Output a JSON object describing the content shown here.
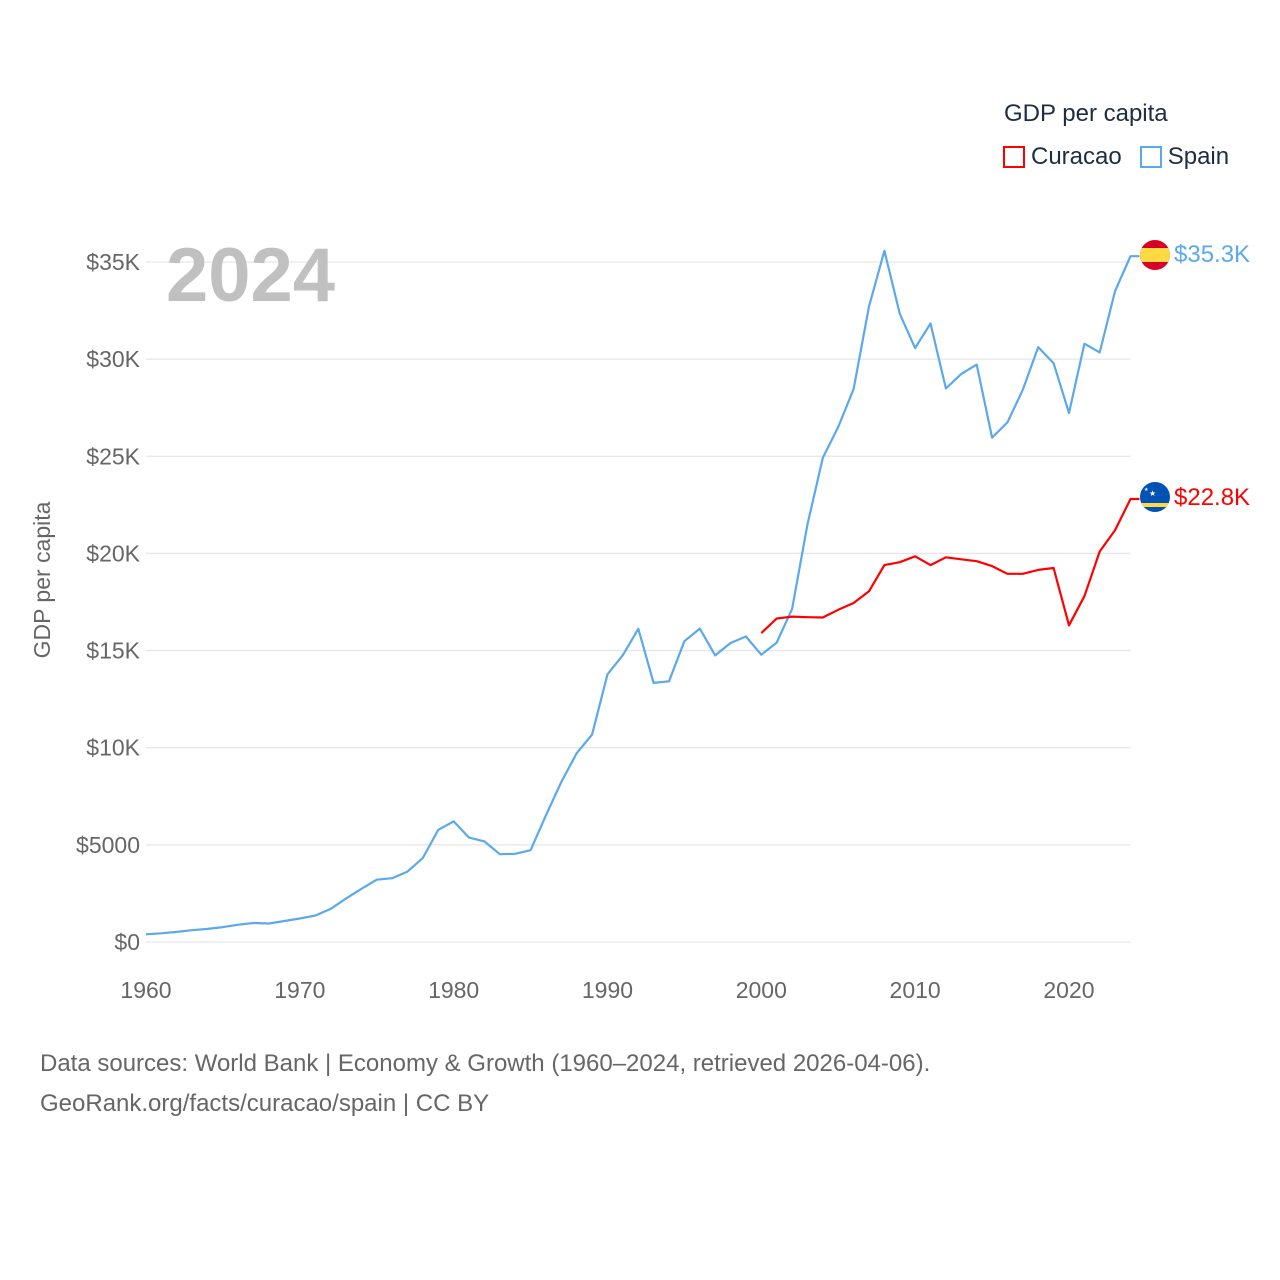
{
  "chart_data": {
    "type": "line",
    "title": "GDP per capita",
    "ylabel": "GDP per capita",
    "xlabel": "",
    "year_label": "2024",
    "xlim": [
      1960,
      2024
    ],
    "ylim": [
      0,
      35000
    ],
    "x_ticks": [
      "1960",
      "1970",
      "1980",
      "1990",
      "2000",
      "2010",
      "2020"
    ],
    "x_tick_values": [
      1960,
      1970,
      1980,
      1990,
      2000,
      2010,
      2020
    ],
    "y_ticks": [
      "$0",
      "$5000",
      "$10K",
      "$15K",
      "$20K",
      "$25K",
      "$30K",
      "$35K"
    ],
    "y_tick_values": [
      0,
      5000,
      10000,
      15000,
      20000,
      25000,
      30000,
      35000
    ],
    "grid": true,
    "legend_placement": "top-right",
    "series": [
      {
        "name": "Curacao",
        "color": "#ff0000",
        "end_label": "$22.8K",
        "flag": "curacao-flag",
        "x": [
          2000,
          2001,
          2002,
          2003,
          2004,
          2005,
          2006,
          2007,
          2008,
          2009,
          2010,
          2011,
          2012,
          2013,
          2014,
          2015,
          2016,
          2017,
          2018,
          2019,
          2020,
          2021,
          2022,
          2023,
          2024
        ],
        "values": [
          15900,
          16650,
          16750,
          16720,
          16700,
          17100,
          17450,
          18050,
          19400,
          19550,
          19850,
          19400,
          19800,
          19700,
          19600,
          19350,
          18950,
          18950,
          19150,
          19250,
          16300,
          17800,
          20100,
          21200,
          22800
        ]
      },
      {
        "name": "Spain",
        "color": "#5ba8ec",
        "end_label": "$35.3K",
        "flag": "spain-flag",
        "x": [
          1960,
          1961,
          1962,
          1963,
          1964,
          1965,
          1966,
          1967,
          1968,
          1969,
          1970,
          1971,
          1972,
          1973,
          1974,
          1975,
          1976,
          1977,
          1978,
          1979,
          1980,
          1981,
          1982,
          1983,
          1984,
          1985,
          1986,
          1987,
          1988,
          1989,
          1990,
          1991,
          1992,
          1993,
          1994,
          1995,
          1996,
          1997,
          1998,
          1999,
          2000,
          2001,
          2002,
          2003,
          2004,
          2005,
          2006,
          2007,
          2008,
          2009,
          2010,
          2011,
          2012,
          2013,
          2014,
          2015,
          2016,
          2017,
          2018,
          2019,
          2020,
          2021,
          2022,
          2023,
          2024
        ],
        "values": [
          396,
          450,
          520,
          609,
          675,
          769,
          888,
          976,
          950,
          1080,
          1207,
          1357,
          1703,
          2232,
          2738,
          3208,
          3283,
          3626,
          4329,
          5776,
          6209,
          5371,
          5180,
          4519,
          4541,
          4725,
          6529,
          8236,
          9716,
          10681,
          13777,
          14766,
          16119,
          13338,
          13418,
          15481,
          16129,
          14751,
          15390,
          15726,
          14788,
          15412,
          17146,
          21500,
          24918,
          26508,
          28459,
          32709,
          35579,
          32334,
          30566,
          31837,
          28488,
          29243,
          29718,
          25963,
          26743,
          28421,
          30621,
          29790,
          27228,
          30797,
          30345,
          33509,
          35297
        ]
      }
    ]
  },
  "legend": {
    "title": "GDP per capita",
    "items": [
      "Curacao",
      "Spain"
    ]
  },
  "footer": {
    "source": "Data sources: World Bank | Economy & Growth (1960–2024, retrieved 2026-04-06).",
    "credit": "GeoRank.org/facts/curacao/spain | CC BY"
  }
}
